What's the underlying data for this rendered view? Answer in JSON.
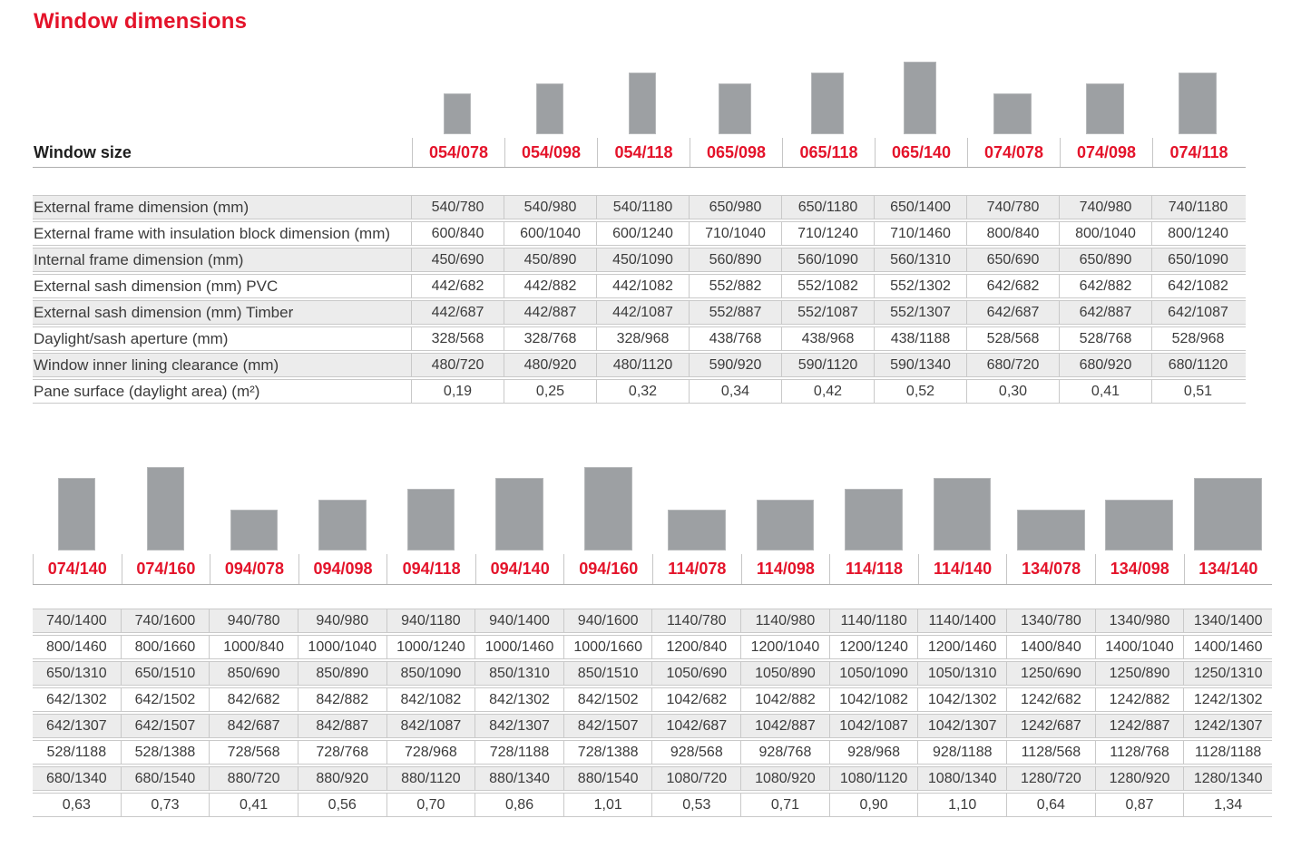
{
  "title": "Window dimensions",
  "accent_color": "#e4132a",
  "bar_color": "#9da0a3",
  "window_size_label": "Window size",
  "row_labels": [
    "External frame dimension (mm)",
    "External frame with insulation block dimension (mm)",
    "Internal frame dimension (mm)",
    "External sash dimension (mm) PVC",
    "External sash dimension (mm) Timber",
    "Daylight/sash aperture (mm)",
    "Window inner lining clearance (mm)",
    "Pane surface (daylight area) (m²)"
  ],
  "section1": {
    "columns": [
      {
        "code": "054/078",
        "values": [
          "540/780",
          "600/840",
          "450/690",
          "442/682",
          "442/687",
          "328/568",
          "480/720",
          "0,19"
        ]
      },
      {
        "code": "054/098",
        "values": [
          "540/980",
          "600/1040",
          "450/890",
          "442/882",
          "442/887",
          "328/768",
          "480/920",
          "0,25"
        ]
      },
      {
        "code": "054/118",
        "values": [
          "540/1180",
          "600/1240",
          "450/1090",
          "442/1082",
          "442/1087",
          "328/968",
          "480/1120",
          "0,32"
        ]
      },
      {
        "code": "065/098",
        "values": [
          "650/980",
          "710/1040",
          "560/890",
          "552/882",
          "552/887",
          "438/768",
          "590/920",
          "0,34"
        ]
      },
      {
        "code": "065/118",
        "values": [
          "650/1180",
          "710/1240",
          "560/1090",
          "552/1082",
          "552/1087",
          "438/968",
          "590/1120",
          "0,42"
        ]
      },
      {
        "code": "065/140",
        "values": [
          "650/1400",
          "710/1460",
          "560/1310",
          "552/1302",
          "552/1307",
          "438/1188",
          "590/1340",
          "0,52"
        ]
      },
      {
        "code": "074/078",
        "values": [
          "740/780",
          "800/840",
          "650/690",
          "642/682",
          "642/687",
          "528/568",
          "680/720",
          "0,30"
        ]
      },
      {
        "code": "074/098",
        "values": [
          "740/980",
          "800/1040",
          "650/890",
          "642/882",
          "642/887",
          "528/768",
          "680/920",
          "0,41"
        ]
      },
      {
        "code": "074/118",
        "values": [
          "740/1180",
          "800/1240",
          "650/1090",
          "642/1082",
          "642/1087",
          "528/968",
          "680/1120",
          "0,51"
        ]
      }
    ]
  },
  "section2": {
    "columns": [
      {
        "code": "074/140",
        "values": [
          "740/1400",
          "800/1460",
          "650/1310",
          "642/1302",
          "642/1307",
          "528/1188",
          "680/1340",
          "0,63"
        ]
      },
      {
        "code": "074/160",
        "values": [
          "740/1600",
          "800/1660",
          "650/1510",
          "642/1502",
          "642/1507",
          "528/1388",
          "680/1540",
          "0,73"
        ]
      },
      {
        "code": "094/078",
        "values": [
          "940/780",
          "1000/840",
          "850/690",
          "842/682",
          "842/687",
          "728/568",
          "880/720",
          "0,41"
        ]
      },
      {
        "code": "094/098",
        "values": [
          "940/980",
          "1000/1040",
          "850/890",
          "842/882",
          "842/887",
          "728/768",
          "880/920",
          "0,56"
        ]
      },
      {
        "code": "094/118",
        "values": [
          "940/1180",
          "1000/1240",
          "850/1090",
          "842/1082",
          "842/1087",
          "728/968",
          "880/1120",
          "0,70"
        ]
      },
      {
        "code": "094/140",
        "values": [
          "940/1400",
          "1000/1460",
          "850/1310",
          "842/1302",
          "842/1307",
          "728/1188",
          "880/1340",
          "0,86"
        ]
      },
      {
        "code": "094/160",
        "values": [
          "940/1600",
          "1000/1660",
          "850/1510",
          "842/1502",
          "842/1507",
          "728/1388",
          "880/1540",
          "1,01"
        ]
      },
      {
        "code": "114/078",
        "values": [
          "1140/780",
          "1200/840",
          "1050/690",
          "1042/682",
          "1042/687",
          "928/568",
          "1080/720",
          "0,53"
        ]
      },
      {
        "code": "114/098",
        "values": [
          "1140/980",
          "1200/1040",
          "1050/890",
          "1042/882",
          "1042/887",
          "928/768",
          "1080/920",
          "0,71"
        ]
      },
      {
        "code": "114/118",
        "values": [
          "1140/1180",
          "1200/1240",
          "1050/1090",
          "1042/1082",
          "1042/1087",
          "928/968",
          "1080/1120",
          "0,90"
        ]
      },
      {
        "code": "114/140",
        "values": [
          "1140/1400",
          "1200/1460",
          "1050/1310",
          "1042/1302",
          "1042/1307",
          "928/1188",
          "1080/1340",
          "1,10"
        ]
      },
      {
        "code": "134/078",
        "values": [
          "1340/780",
          "1400/840",
          "1250/690",
          "1242/682",
          "1242/687",
          "1128/568",
          "1280/720",
          "0,64"
        ]
      },
      {
        "code": "134/098",
        "values": [
          "1340/980",
          "1400/1040",
          "1250/890",
          "1242/882",
          "1242/887",
          "1128/768",
          "1280/920",
          "0,87"
        ]
      },
      {
        "code": "134/140",
        "values": [
          "1340/1400",
          "1400/1460",
          "1250/1310",
          "1242/1302",
          "1242/1307",
          "1128/1188",
          "1280/1340",
          "1,34"
        ]
      }
    ]
  }
}
